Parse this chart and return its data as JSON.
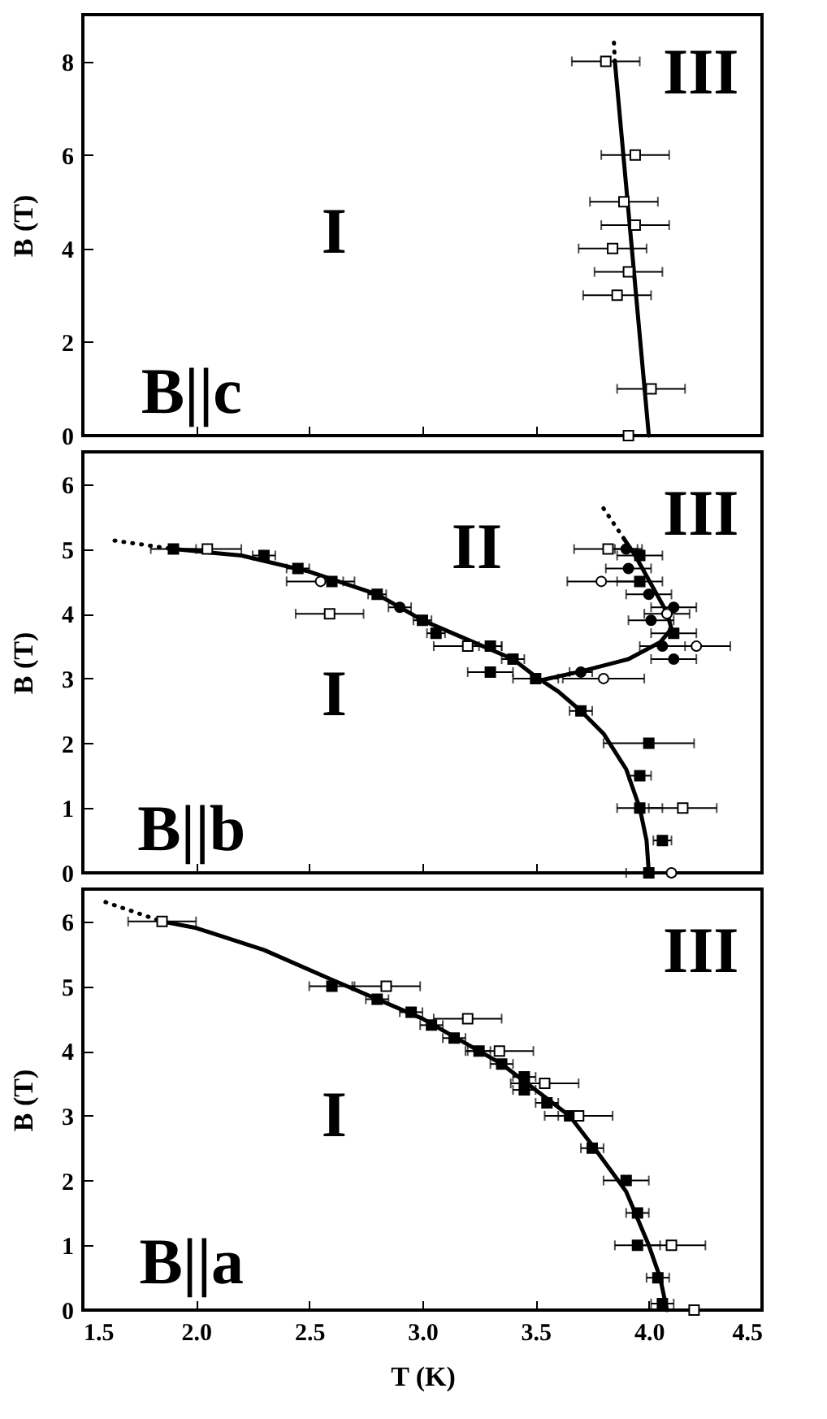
{
  "chart_data": [
    {
      "type": "scatter",
      "ylabel": "B (T)",
      "xlim": [
        1.5,
        4.5
      ],
      "xticks": [
        1.5,
        2.0,
        2.5,
        3.0,
        3.5,
        4.0,
        4.5
      ],
      "ylim": [
        0,
        9
      ],
      "yticks": [
        0,
        2,
        4,
        6,
        8
      ],
      "tick_labels": "y",
      "annotations": [
        "I",
        "III",
        "B||c"
      ],
      "series": [
        {
          "type": "line",
          "color": "#000000",
          "line_style": "solid",
          "x": [
            4.0,
            3.85
          ],
          "values": [
            0,
            8
          ]
        },
        {
          "type": "line",
          "color": "#000000",
          "line_style": "dotted",
          "x": [
            3.85,
            3.845
          ],
          "values": [
            8,
            8.5
          ]
        },
        {
          "type": "scatter",
          "marker": "square",
          "color": "#ffffff",
          "x": [
            3.81,
            3.94,
            3.89,
            3.94,
            3.84,
            3.91,
            3.86,
            4.01,
            3.91
          ],
          "values": [
            8,
            6,
            5,
            4.5,
            4,
            3.5,
            3,
            1,
            0
          ],
          "xerrors": [
            0.15,
            0.15,
            0.15,
            0.15,
            0.15,
            0.15,
            0.15,
            0.15,
            null
          ]
        }
      ]
    },
    {
      "type": "scatter",
      "ylabel": "B (T)",
      "xlim": [
        1.5,
        4.5
      ],
      "xticks": [
        1.5,
        2.0,
        2.5,
        3.0,
        3.5,
        4.0,
        4.5
      ],
      "ylim": [
        0,
        6.5
      ],
      "yticks": [
        0,
        1,
        2,
        3,
        4,
        5,
        6
      ],
      "tick_labels": "y",
      "annotations": [
        "I",
        "II",
        "III",
        "B||b"
      ],
      "series": [
        {
          "type": "line",
          "color": "#000000",
          "line_style": "solid",
          "x": [
            1.9,
            2.2,
            2.5,
            2.8,
            3.0,
            3.2,
            3.4,
            3.5,
            3.6,
            3.7,
            3.8,
            3.9,
            3.96,
            3.99,
            4.0
          ],
          "values": [
            5.0,
            4.9,
            4.65,
            4.3,
            3.9,
            3.6,
            3.3,
            3.03,
            2.8,
            2.5,
            2.15,
            1.6,
            1.0,
            0.5,
            0
          ]
        },
        {
          "type": "line",
          "color": "#000000",
          "line_style": "dotted",
          "x": [
            1.64,
            1.9
          ],
          "values": [
            5.13,
            5.0
          ]
        },
        {
          "type": "line",
          "color": "#000000",
          "line_style": "solid",
          "x": [
            3.52,
            3.7,
            3.91,
            4.05,
            4.1,
            4.08,
            4.0,
            3.94,
            3.89
          ],
          "values": [
            2.97,
            3.11,
            3.3,
            3.56,
            3.77,
            4.02,
            4.52,
            4.9,
            5.16
          ]
        },
        {
          "type": "line",
          "color": "#000000",
          "line_style": "dotted",
          "x": [
            3.89,
            3.78
          ],
          "values": [
            5.16,
            5.73
          ]
        },
        {
          "type": "scatter",
          "marker": "square",
          "color": "#000000",
          "x": [
            1.9,
            2.3,
            2.45,
            2.6,
            2.8,
            3.0,
            3.06,
            3.3,
            3.4,
            3.3,
            3.5,
            3.7,
            4.0,
            3.96,
            3.96,
            4.06,
            4.0,
            3.96,
            3.96,
            4.11
          ],
          "values": [
            5.0,
            4.9,
            4.7,
            4.5,
            4.3,
            3.9,
            3.7,
            3.5,
            3.3,
            3.1,
            3.0,
            2.5,
            2.0,
            1.5,
            1.0,
            0.5,
            0,
            4.9,
            4.5,
            3.7
          ],
          "xerrors": [
            0.1,
            0.05,
            0.05,
            0.05,
            0.04,
            0.04,
            0.04,
            0.05,
            0.05,
            0.1,
            0.1,
            0.05,
            0.2,
            0.05,
            0.1,
            0.04,
            0.1,
            0.1,
            0.1,
            0.1
          ]
        },
        {
          "type": "scatter",
          "marker": "square",
          "color": "#ffffff",
          "x": [
            2.05,
            2.59,
            3.2,
            4.15,
            3.82
          ],
          "values": [
            5.0,
            4.0,
            3.5,
            1.0,
            5.0
          ],
          "xerrors": [
            0.15,
            0.15,
            0.15,
            0.15,
            0.15
          ]
        },
        {
          "type": "scatter",
          "marker": "circle",
          "color": "#000000",
          "x": [
            2.9,
            3.7,
            3.9,
            3.91,
            4.0,
            4.11,
            4.01,
            4.06,
            4.11
          ],
          "values": [
            4.1,
            3.1,
            5.0,
            4.7,
            4.3,
            4.1,
            3.9,
            3.5,
            3.3
          ],
          "xerrors": [
            0.05,
            0.05,
            0.05,
            0.1,
            0.1,
            0.1,
            0.1,
            0.1,
            0.1
          ]
        },
        {
          "type": "scatter",
          "marker": "circle",
          "color": "#ffffff",
          "x": [
            2.55,
            3.8,
            4.1,
            3.79,
            4.08,
            4.21
          ],
          "values": [
            4.5,
            3.0,
            0,
            4.5,
            4.0,
            3.5
          ],
          "xerrors": [
            0.15,
            0.18,
            null,
            0.15,
            0.1,
            0.15
          ]
        }
      ]
    },
    {
      "type": "scatter",
      "xlabel": "T (K)",
      "ylabel": "B (T)",
      "xlim": [
        1.5,
        4.5
      ],
      "xticks": [
        1.5,
        {
          "value": 2,
          "label": "2.0"
        },
        2.5,
        {
          "value": 3,
          "label": "3.0"
        },
        3.5,
        {
          "value": 4,
          "label": "4.0"
        },
        4.5
      ],
      "ylim": [
        0,
        6.5
      ],
      "yticks": [
        0,
        1,
        2,
        3,
        4,
        5,
        6
      ],
      "annotations": [
        "I",
        "III",
        "B||a"
      ],
      "series": [
        {
          "type": "line",
          "color": "#000000",
          "line_style": "solid",
          "x": [
            1.85,
            2.0,
            2.3,
            2.6,
            3.0,
            3.35,
            3.65,
            3.76,
            3.9,
            4.0,
            4.05,
            4.08
          ],
          "values": [
            6.0,
            5.9,
            5.56,
            5.1,
            4.5,
            3.8,
            3.0,
            2.5,
            1.83,
            1.0,
            0.5,
            0
          ]
        },
        {
          "type": "line",
          "color": "#000000",
          "line_style": "dotted",
          "x": [
            1.6,
            1.85
          ],
          "values": [
            6.3,
            6.0
          ]
        },
        {
          "type": "scatter",
          "marker": "square",
          "color": "#000000",
          "x": [
            2.6,
            2.8,
            2.95,
            3.04,
            3.14,
            3.25,
            3.35,
            3.45,
            3.45,
            3.55,
            3.65,
            3.75,
            3.9,
            3.95,
            3.95,
            4.04,
            4.06
          ],
          "values": [
            5.0,
            4.8,
            4.6,
            4.4,
            4.2,
            4.0,
            3.8,
            3.6,
            3.4,
            3.2,
            3.0,
            2.5,
            2.0,
            1.5,
            1.0,
            0.5,
            0.1
          ],
          "xerrors": [
            0.1,
            0.05,
            0.05,
            0.05,
            0.05,
            0.05,
            0.05,
            0.05,
            0.05,
            0.05,
            0.05,
            0.05,
            0.1,
            0.05,
            0.1,
            0.05,
            0.05
          ]
        },
        {
          "type": "scatter",
          "marker": "square",
          "color": "#ffffff",
          "x": [
            1.85,
            2.84,
            3.2,
            3.34,
            3.54,
            3.69,
            4.1,
            4.2
          ],
          "values": [
            6.0,
            5.0,
            4.5,
            4.0,
            3.5,
            3.0,
            1.0,
            0
          ],
          "xerrors": [
            0.15,
            0.15,
            0.15,
            0.15,
            0.15,
            0.15,
            0.15,
            null
          ]
        }
      ]
    }
  ]
}
